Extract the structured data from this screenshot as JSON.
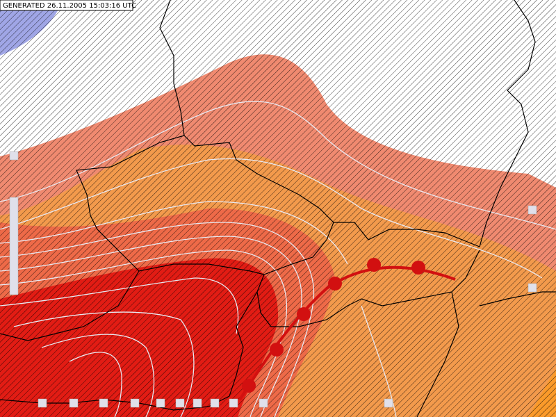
{
  "header": {
    "generated": "GENERATED 26.11.2005 15:03:16 UTC"
  }
}
